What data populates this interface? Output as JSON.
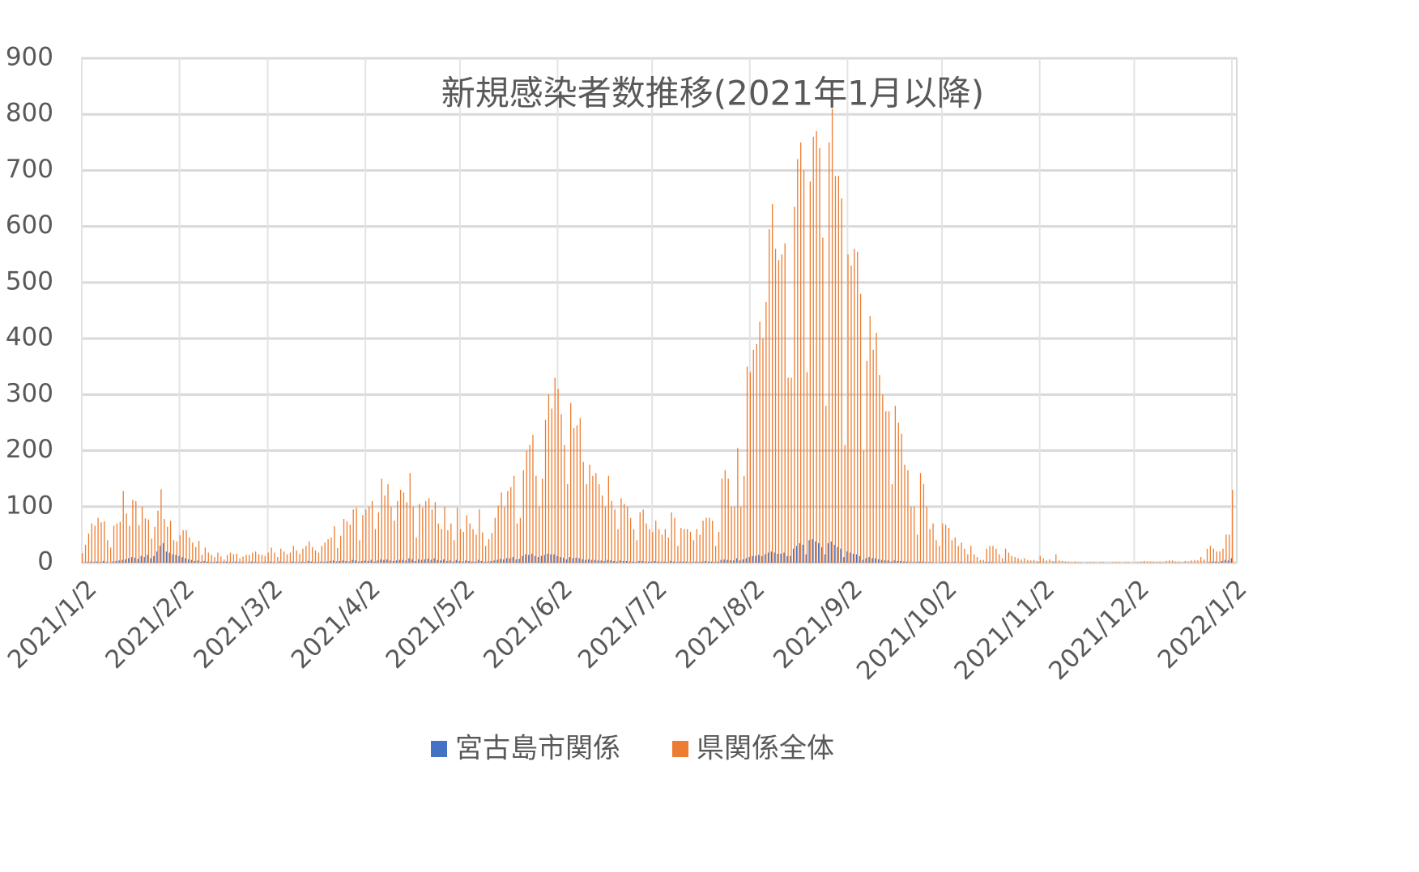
{
  "chart_data": {
    "type": "bar",
    "title": "新規感染者数推移(2021年1月以降)",
    "categories": [
      "2021/1/2",
      null,
      null,
      null,
      null,
      null,
      null,
      null,
      null,
      null,
      null,
      null,
      null,
      null,
      null,
      null,
      null,
      null,
      null,
      null,
      null,
      null,
      null,
      null,
      null,
      null,
      null,
      null,
      null,
      null,
      null,
      "2021/2/2",
      null,
      null,
      null,
      null,
      null,
      null,
      null,
      null,
      null,
      null,
      null,
      null,
      null,
      null,
      null,
      null,
      null,
      null,
      null,
      null,
      null,
      null,
      null,
      null,
      null,
      null,
      null,
      "2021/3/2",
      null,
      null,
      null,
      null,
      null,
      null,
      null,
      null,
      null,
      null,
      null,
      null,
      null,
      null,
      null,
      null,
      null,
      null,
      null,
      null,
      null,
      null,
      null,
      null,
      null,
      null,
      null,
      null,
      null,
      null,
      "2021/4/2",
      null,
      null,
      null,
      null,
      null,
      null,
      null,
      null,
      null,
      null,
      null,
      null,
      null,
      null,
      null,
      null,
      null,
      null,
      null,
      null,
      null,
      null,
      null,
      null,
      null,
      null,
      null,
      null,
      null,
      "2021/5/2",
      null,
      null,
      null,
      null,
      null,
      null,
      null,
      null,
      null,
      null,
      null,
      null,
      null,
      null,
      null,
      null,
      null,
      null,
      null,
      null,
      null,
      null,
      null,
      null,
      null,
      null,
      null,
      null,
      null,
      null,
      "2021/6/2",
      null,
      null,
      null,
      null,
      null,
      null,
      null,
      null,
      null,
      null,
      null,
      null,
      null,
      null,
      null,
      null,
      null,
      null,
      null,
      null,
      null,
      null,
      null,
      null,
      null,
      null,
      null,
      null,
      null,
      "2021/7/2",
      null,
      null,
      null,
      null,
      null,
      null,
      null,
      null,
      null,
      null,
      null,
      null,
      null,
      null,
      null,
      null,
      null,
      null,
      null,
      null,
      null,
      null,
      null,
      null,
      null,
      null,
      null,
      null,
      null,
      null,
      "2021/8/2",
      null,
      null,
      null,
      null,
      null,
      null,
      null,
      null,
      null,
      null,
      null,
      null,
      null,
      null,
      null,
      null,
      null,
      null,
      null,
      null,
      null,
      null,
      null,
      null,
      null,
      null,
      null,
      null,
      null,
      null,
      "2021/9/2",
      null,
      null,
      null,
      null,
      null,
      null,
      null,
      null,
      null,
      null,
      null,
      null,
      null,
      null,
      null,
      null,
      null,
      null,
      null,
      null,
      null,
      null,
      null,
      null,
      null,
      null,
      null,
      null,
      null,
      "2021/10/2",
      null,
      null,
      null,
      null,
      null,
      null,
      null,
      null,
      null,
      null,
      null,
      null,
      null,
      null,
      null,
      null,
      null,
      null,
      null,
      null,
      null,
      null,
      null,
      null,
      null,
      null,
      null,
      null,
      null,
      null,
      "2021/11/2",
      null,
      null,
      null,
      null,
      null,
      null,
      null,
      null,
      null,
      null,
      null,
      null,
      null,
      null,
      null,
      null,
      null,
      null,
      null,
      null,
      null,
      null,
      null,
      null,
      null,
      null,
      null,
      null,
      null,
      "2021/12/2",
      null,
      null,
      null,
      null,
      null,
      null,
      null,
      null,
      null,
      null,
      null,
      null,
      null,
      null,
      null,
      null,
      null,
      null,
      null,
      null,
      null,
      null,
      null,
      null,
      null,
      null,
      null,
      null,
      null,
      null,
      "2022/1/2"
    ],
    "series": [
      {
        "name": "宮古島市関係",
        "color": "#4472c4",
        "values": [
          0,
          0,
          1,
          2,
          1,
          2,
          1,
          3,
          1,
          0,
          2,
          3,
          4,
          5,
          6,
          8,
          10,
          9,
          7,
          12,
          10,
          14,
          8,
          12,
          20,
          30,
          35,
          20,
          18,
          15,
          14,
          12,
          10,
          8,
          6,
          5,
          3,
          4,
          2,
          3,
          2,
          1,
          1,
          2,
          1,
          1,
          2,
          1,
          1,
          2,
          1,
          1,
          0,
          1,
          2,
          1,
          1,
          0,
          1,
          1,
          2,
          1,
          0,
          2,
          1,
          1,
          0,
          2,
          1,
          1,
          2,
          1,
          3,
          2,
          1,
          1,
          2,
          1,
          2,
          3,
          4,
          2,
          3,
          4,
          3,
          2,
          5,
          4,
          2,
          3,
          4,
          3,
          5,
          2,
          4,
          6,
          5,
          6,
          4,
          3,
          4,
          5,
          5,
          4,
          8,
          6,
          3,
          6,
          5,
          6,
          7,
          5,
          8,
          5,
          4,
          6,
          3,
          4,
          2,
          5,
          3,
          2,
          4,
          3,
          2,
          2,
          5,
          3,
          1,
          2,
          3,
          4,
          5,
          7,
          6,
          8,
          8,
          10,
          6,
          7,
          12,
          15,
          14,
          16,
          12,
          10,
          12,
          14,
          16,
          15,
          15,
          12,
          10,
          9,
          6,
          10,
          8,
          9,
          8,
          6,
          5,
          6,
          5,
          5,
          4,
          4,
          3,
          5,
          4,
          3,
          2,
          4,
          3,
          3,
          2,
          2,
          1,
          3,
          3,
          2,
          2,
          2,
          3,
          2,
          1,
          2,
          1,
          3,
          2,
          1,
          2,
          2,
          2,
          1,
          1,
          2,
          1,
          2,
          3,
          2,
          2,
          1,
          2,
          5,
          6,
          5,
          4,
          4,
          8,
          4,
          6,
          8,
          10,
          12,
          12,
          14,
          12,
          15,
          18,
          20,
          18,
          16,
          16,
          18,
          12,
          12,
          25,
          30,
          35,
          32,
          15,
          40,
          42,
          38,
          35,
          28,
          15,
          35,
          38,
          32,
          28,
          25,
          10,
          20,
          18,
          16,
          15,
          12,
          5,
          8,
          10,
          8,
          8,
          6,
          5,
          4,
          4,
          2,
          4,
          3,
          3,
          2,
          2,
          1,
          1,
          1,
          2,
          2,
          1,
          1,
          1,
          0,
          0,
          1,
          1,
          1,
          0,
          1,
          0,
          1,
          0,
          0,
          1,
          0,
          0,
          0,
          0,
          1,
          1,
          1,
          0,
          0,
          0,
          1,
          0,
          0,
          0,
          0,
          0,
          0,
          0,
          0,
          0,
          0,
          1,
          0,
          0,
          0,
          0,
          1,
          0,
          0,
          0,
          0,
          0,
          0,
          0,
          0,
          0,
          0,
          0,
          0,
          0,
          0,
          0,
          0,
          0,
          0,
          0,
          0,
          0,
          0,
          0,
          0,
          0,
          0,
          0,
          0,
          0,
          0,
          0,
          0,
          0,
          0,
          0,
          0,
          0,
          0,
          0,
          0,
          0,
          0,
          0,
          0,
          0,
          0,
          0,
          0,
          1,
          2,
          2,
          1,
          3,
          5,
          4,
          8
        ]
      },
      {
        "name": "県関係全体",
        "color": "#ed7d31",
        "values": [
          17,
          32,
          52,
          70,
          66,
          80,
          72,
          74,
          40,
          27,
          66,
          70,
          73,
          128,
          88,
          66,
          112,
          110,
          67,
          100,
          79,
          77,
          43,
          64,
          93,
          131,
          78,
          64,
          75,
          40,
          38,
          49,
          58,
          58,
          45,
          36,
          28,
          39,
          14,
          27,
          18,
          14,
          10,
          18,
          11,
          6,
          14,
          18,
          15,
          16,
          8,
          11,
          14,
          14,
          18,
          20,
          15,
          14,
          12,
          18,
          27,
          18,
          10,
          25,
          20,
          15,
          18,
          30,
          22,
          16,
          25,
          30,
          38,
          28,
          22,
          18,
          30,
          36,
          42,
          45,
          65,
          26,
          48,
          78,
          74,
          68,
          95,
          98,
          40,
          85,
          95,
          100,
          110,
          60,
          90,
          150,
          120,
          140,
          100,
          75,
          110,
          130,
          125,
          108,
          160,
          100,
          45,
          105,
          98,
          110,
          115,
          95,
          108,
          70,
          60,
          100,
          58,
          70,
          40,
          98,
          60,
          55,
          85,
          70,
          60,
          50,
          95,
          54,
          30,
          42,
          53,
          80,
          102,
          125,
          100,
          128,
          135,
          155,
          70,
          80,
          165,
          200,
          210,
          228,
          155,
          100,
          150,
          255,
          300,
          275,
          330,
          310,
          265,
          210,
          140,
          285,
          240,
          245,
          258,
          180,
          140,
          175,
          155,
          160,
          140,
          120,
          100,
          155,
          110,
          95,
          60,
          115,
          105,
          100,
          80,
          60,
          40,
          90,
          95,
          70,
          60,
          55,
          75,
          60,
          50,
          60,
          45,
          90,
          80,
          30,
          62,
          60,
          60,
          55,
          40,
          60,
          50,
          75,
          80,
          80,
          75,
          30,
          55,
          150,
          165,
          150,
          100,
          100,
          205,
          100,
          155,
          350,
          340,
          380,
          390,
          430,
          400,
          465,
          595,
          640,
          560,
          540,
          550,
          570,
          330,
          330,
          635,
          720,
          750,
          700,
          340,
          680,
          760,
          770,
          740,
          580,
          280,
          750,
          810,
          690,
          690,
          650,
          210,
          550,
          530,
          560,
          555,
          480,
          200,
          360,
          440,
          380,
          410,
          335,
          300,
          270,
          270,
          140,
          280,
          250,
          230,
          175,
          165,
          100,
          100,
          50,
          160,
          140,
          100,
          60,
          70,
          40,
          30,
          70,
          68,
          62,
          40,
          45,
          30,
          36,
          25,
          15,
          30,
          15,
          10,
          5,
          5,
          25,
          30,
          30,
          25,
          15,
          8,
          25,
          18,
          12,
          10,
          8,
          6,
          8,
          5,
          4,
          5,
          3,
          12,
          8,
          4,
          6,
          3,
          15,
          4,
          3,
          2,
          2,
          1,
          2,
          1,
          1,
          0,
          1,
          1,
          1,
          0,
          1,
          1,
          0,
          0,
          1,
          1,
          1,
          0,
          1,
          1,
          0,
          1,
          1,
          2,
          3,
          2,
          2,
          2,
          1,
          2,
          1,
          3,
          4,
          4,
          2,
          2,
          1,
          3,
          2,
          4,
          5,
          4,
          10,
          6,
          25,
          30,
          25,
          20,
          20,
          25,
          50,
          50,
          130
        ]
      }
    ],
    "ylim": [
      0,
      900
    ],
    "yticks": [
      0,
      100,
      200,
      300,
      400,
      500,
      600,
      700,
      800,
      900
    ],
    "grid": true,
    "legend": "bottom"
  }
}
